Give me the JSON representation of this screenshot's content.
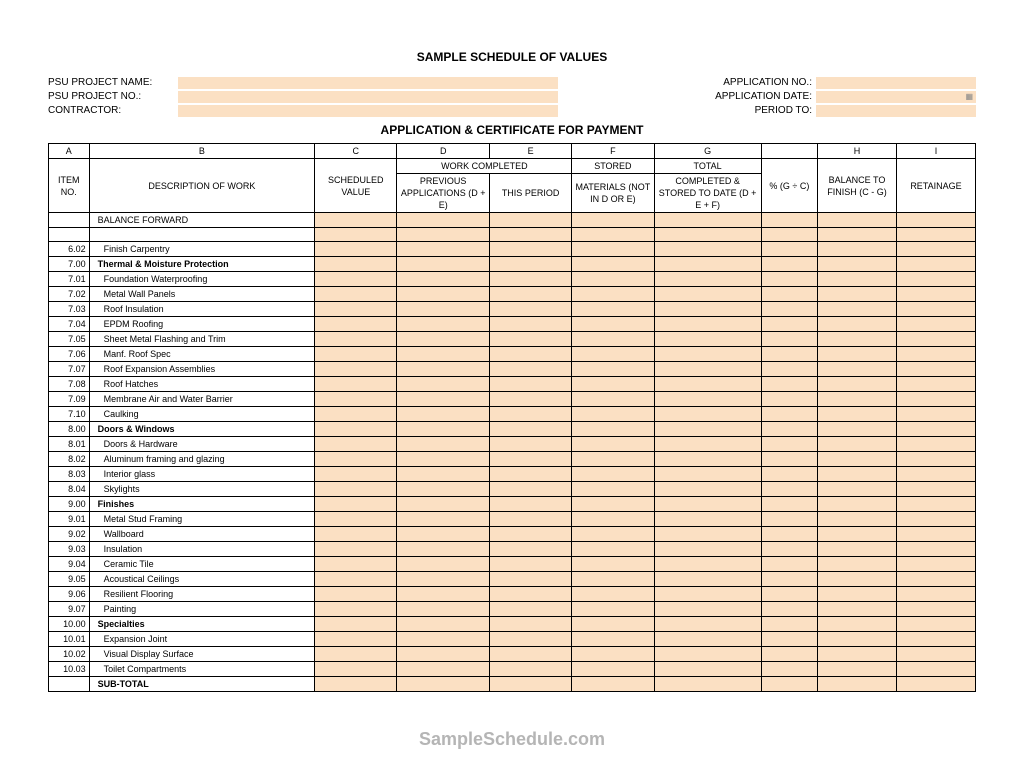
{
  "title": "SAMPLE SCHEDULE OF VALUES",
  "subtitle": "APPLICATION & CERTIFICATE FOR PAYMENT",
  "watermark": "SampleSchedule.com",
  "fields_left": [
    "PSU PROJECT NAME:",
    "PSU PROJECT NO.:",
    "CONTRACTOR:"
  ],
  "fields_right": [
    "APPLICATION NO.:",
    "APPLICATION DATE:",
    "PERIOD TO:"
  ],
  "colors": {
    "peach": "#fbe0c3",
    "border": "#000000",
    "background": "#ffffff",
    "watermark": "#b5b5b5"
  },
  "column_letters": [
    "A",
    "B",
    "C",
    "D",
    "E",
    "F",
    "G",
    "",
    "H",
    "I"
  ],
  "header_groups": {
    "work_completed": "WORK COMPLETED",
    "stored": "STORED",
    "total": "TOTAL"
  },
  "column_headers": {
    "item_no": "ITEM NO.",
    "description": "DESCRIPTION OF WORK",
    "scheduled_value": "SCHEDULED VALUE",
    "previous": "PREVIOUS APPLICATIONS (D + E)",
    "this_period": "THIS PERIOD",
    "materials": "MATERIALS (NOT IN D OR E)",
    "completed_stored": "COMPLETED & STORED TO DATE (D + E + F)",
    "percent": "% (G ÷ C)",
    "balance": "BALANCE TO FINISH (C - G)",
    "retainage": "RETAINAGE"
  },
  "rows": [
    {
      "no": "",
      "desc": "BALANCE FORWARD",
      "bold": false,
      "indent": false
    },
    {
      "blank": true
    },
    {
      "no": "6.02",
      "desc": "Finish Carpentry",
      "indent": true
    },
    {
      "no": "7.00",
      "desc": "Thermal & Moisture Protection",
      "bold": true
    },
    {
      "no": "7.01",
      "desc": "Foundation Waterproofing",
      "indent": true
    },
    {
      "no": "7.02",
      "desc": "Metal Wall Panels",
      "indent": true
    },
    {
      "no": "7.03",
      "desc": "Roof Insulation",
      "indent": true
    },
    {
      "no": "7.04",
      "desc": "EPDM Roofing",
      "indent": true
    },
    {
      "no": "7.05",
      "desc": "Sheet Metal Flashing and Trim",
      "indent": true
    },
    {
      "no": "7.06",
      "desc": "Manf. Roof Spec",
      "indent": true
    },
    {
      "no": "7.07",
      "desc": "Roof Expansion Assemblies",
      "indent": true
    },
    {
      "no": "7.08",
      "desc": "Roof Hatches",
      "indent": true
    },
    {
      "no": "7.09",
      "desc": "Membrane Air and Water Barrier",
      "indent": true
    },
    {
      "no": "7.10",
      "desc": "Caulking",
      "indent": true
    },
    {
      "no": "8.00",
      "desc": "Doors & Windows",
      "bold": true
    },
    {
      "no": "8.01",
      "desc": "Doors & Hardware",
      "indent": true
    },
    {
      "no": "8.02",
      "desc": "Aluminum framing and glazing",
      "indent": true
    },
    {
      "no": "8.03",
      "desc": "Interior glass",
      "indent": true
    },
    {
      "no": "8.04",
      "desc": "Skylights",
      "indent": true
    },
    {
      "no": "9.00",
      "desc": "Finishes",
      "bold": true
    },
    {
      "no": "9.01",
      "desc": "Metal Stud Framing",
      "indent": true
    },
    {
      "no": "9.02",
      "desc": "Wallboard",
      "indent": true
    },
    {
      "no": "9.03",
      "desc": "Insulation",
      "indent": true
    },
    {
      "no": "9.04",
      "desc": "Ceramic Tile",
      "indent": true
    },
    {
      "no": "9.05",
      "desc": "Acoustical Ceilings",
      "indent": true
    },
    {
      "no": "9.06",
      "desc": "Resilient Flooring",
      "indent": true
    },
    {
      "no": "9.07",
      "desc": "Painting",
      "indent": true
    },
    {
      "no": "10.00",
      "desc": "Specialties",
      "bold": true
    },
    {
      "no": "10.01",
      "desc": "Expansion Joint",
      "indent": true
    },
    {
      "no": "10.02",
      "desc": "Visual Display Surface",
      "indent": true
    },
    {
      "no": "10.03",
      "desc": "Toilet Compartments",
      "indent": true
    },
    {
      "no": "",
      "desc": "SUB-TOTAL",
      "bold": true
    }
  ]
}
